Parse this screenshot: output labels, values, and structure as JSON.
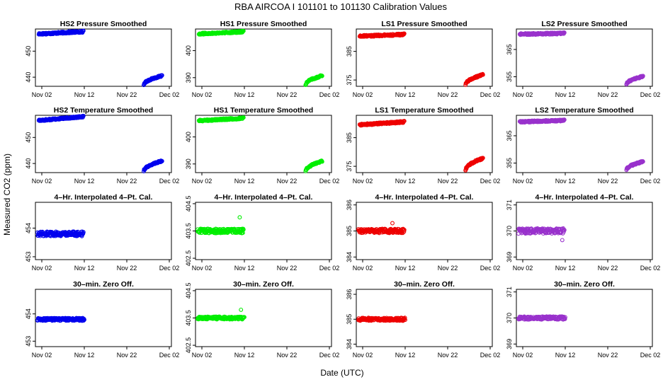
{
  "title": "RBA   AIRCOA I   101101 to 101130   Calibration Values",
  "xlabel": "Date (UTC)",
  "ylabel": "Measured CO2 (ppm)",
  "x_ticks": [
    "Nov 02",
    "Nov 12",
    "Nov 22",
    "Dec 02"
  ],
  "x_tick_days": [
    2,
    12,
    22,
    32
  ],
  "x_range_days": [
    0.5,
    32.5
  ],
  "column_colors": [
    "#0000ee",
    "#00ee00",
    "#ee0000",
    "#9932cc"
  ],
  "chart_data": [
    {
      "type": "scatter",
      "title": "HS2 Pressure Smoothed",
      "row": 0,
      "col": 0,
      "ylim": [
        436.5,
        458.5
      ],
      "y_ticks": [
        440,
        450
      ],
      "segments": [
        {
          "x_start": 1.3,
          "x_end": 11.8,
          "y_start": 456.6,
          "y_end": 457.5,
          "noise": 0.35
        },
        {
          "x_start": 26.0,
          "x_end": 30.3,
          "y_start": 437.0,
          "y_end": 440.5,
          "noise": 0.3,
          "shape": "sqrt"
        }
      ]
    },
    {
      "type": "scatter",
      "title": "HS1 Pressure Smoothed",
      "row": 0,
      "col": 1,
      "ylim": [
        386.8,
        408
      ],
      "y_ticks": [
        390,
        400
      ],
      "segments": [
        {
          "x_start": 1.3,
          "x_end": 11.8,
          "y_start": 406.2,
          "y_end": 407.0,
          "noise": 0.3
        },
        {
          "x_start": 26.4,
          "x_end": 30.3,
          "y_start": 387.3,
          "y_end": 390.7,
          "noise": 0.3,
          "shape": "sqrt"
        }
      ]
    },
    {
      "type": "scatter",
      "title": "LS1 Pressure Smoothed",
      "row": 0,
      "col": 2,
      "ylim": [
        372.8,
        392.8
      ],
      "y_ticks": [
        375,
        385
      ],
      "segments": [
        {
          "x_start": 1.3,
          "x_end": 11.8,
          "y_start": 390.3,
          "y_end": 390.9,
          "noise": 0.3
        },
        {
          "x_start": 26.2,
          "x_end": 30.3,
          "y_start": 373.3,
          "y_end": 376.8,
          "noise": 0.3,
          "shape": "sqrt"
        }
      ]
    },
    {
      "type": "scatter",
      "title": "LS2 Pressure Smoothed",
      "row": 0,
      "col": 3,
      "ylim": [
        351.5,
        372.5
      ],
      "y_ticks": [
        355,
        365
      ],
      "segments": [
        {
          "x_start": 1.3,
          "x_end": 11.8,
          "y_start": 370.6,
          "y_end": 370.9,
          "noise": 0.3
        },
        {
          "x_start": 26.4,
          "x_end": 30.3,
          "y_start": 352.2,
          "y_end": 355.1,
          "noise": 0.3,
          "shape": "sqrt"
        }
      ]
    },
    {
      "type": "scatter",
      "title": "HS2 Temperature Smoothed",
      "row": 1,
      "col": 0,
      "ylim": [
        436.5,
        458.5
      ],
      "y_ticks": [
        440,
        450
      ],
      "segments": [
        {
          "x_start": 1.3,
          "x_end": 11.8,
          "y_start": 456.5,
          "y_end": 458.0,
          "noise": 0.3
        },
        {
          "x_start": 26.0,
          "x_end": 30.3,
          "y_start": 437.0,
          "y_end": 441.0,
          "noise": 0.3,
          "shape": "sqrt"
        }
      ]
    },
    {
      "type": "scatter",
      "title": "HS1 Temperature Smoothed",
      "row": 1,
      "col": 1,
      "ylim": [
        386.8,
        408
      ],
      "y_ticks": [
        390,
        400
      ],
      "segments": [
        {
          "x_start": 1.3,
          "x_end": 11.8,
          "y_start": 406.0,
          "y_end": 406.9,
          "noise": 0.3
        },
        {
          "x_start": 26.4,
          "x_end": 30.3,
          "y_start": 387.3,
          "y_end": 391.0,
          "noise": 0.3,
          "shape": "sqrt"
        }
      ]
    },
    {
      "type": "scatter",
      "title": "LS1 Temperature Smoothed",
      "row": 1,
      "col": 2,
      "ylim": [
        372.8,
        392.8
      ],
      "y_ticks": [
        375,
        385
      ],
      "segments": [
        {
          "x_start": 1.3,
          "x_end": 11.8,
          "y_start": 389.5,
          "y_end": 390.5,
          "noise": 0.3
        },
        {
          "x_start": 26.2,
          "x_end": 30.3,
          "y_start": 373.5,
          "y_end": 377.8,
          "noise": 0.3,
          "shape": "sqrt"
        }
      ]
    },
    {
      "type": "scatter",
      "title": "LS2 Temperature Smoothed",
      "row": 1,
      "col": 3,
      "ylim": [
        351.5,
        372.5
      ],
      "y_ticks": [
        355,
        365
      ],
      "segments": [
        {
          "x_start": 1.3,
          "x_end": 11.8,
          "y_start": 370.1,
          "y_end": 370.6,
          "noise": 0.3
        },
        {
          "x_start": 26.4,
          "x_end": 30.3,
          "y_start": 352.4,
          "y_end": 355.5,
          "noise": 0.3,
          "shape": "sqrt"
        }
      ]
    },
    {
      "type": "scatter",
      "title": "4–Hr. Interpolated 4–Pt. Cal.",
      "row": 2,
      "col": 0,
      "ylim": [
        452.9,
        454.9
      ],
      "y_ticks": [
        453.0,
        454.0
      ],
      "segments": [
        {
          "x_start": 1.0,
          "x_end": 11.8,
          "y_start": 453.8,
          "y_end": 453.8,
          "noise": 0.08
        }
      ]
    },
    {
      "type": "scatter",
      "title": "4–Hr. Interpolated 4–Pt. Cal.",
      "row": 2,
      "col": 1,
      "ylim": [
        402.45,
        404.55
      ],
      "y_ticks": [
        402.5,
        403.5,
        404.5
      ],
      "segments": [
        {
          "x_start": 1.0,
          "x_end": 11.8,
          "y_start": 403.5,
          "y_end": 403.5,
          "noise": 0.08
        }
      ],
      "outliers": [
        {
          "x": 10.9,
          "y": 404.0
        }
      ]
    },
    {
      "type": "scatter",
      "title": "4–Hr. Interpolated 4–Pt. Cal.",
      "row": 2,
      "col": 2,
      "ylim": [
        383.9,
        386.1
      ],
      "y_ticks": [
        384.0,
        385.0,
        386.0
      ],
      "segments": [
        {
          "x_start": 1.0,
          "x_end": 11.8,
          "y_start": 385.0,
          "y_end": 385.0,
          "noise": 0.08
        }
      ],
      "outliers": [
        {
          "x": 9.0,
          "y": 385.3
        }
      ]
    },
    {
      "type": "scatter",
      "title": "4–Hr. Interpolated 4–Pt. Cal.",
      "row": 2,
      "col": 3,
      "ylim": [
        368.9,
        371.1
      ],
      "y_ticks": [
        369.0,
        370.0,
        371.0
      ],
      "segments": [
        {
          "x_start": 1.0,
          "x_end": 11.8,
          "y_start": 370.0,
          "y_end": 370.0,
          "noise": 0.1
        }
      ],
      "outliers": [
        {
          "x": 11.3,
          "y": 369.65
        }
      ]
    },
    {
      "type": "scatter",
      "title": "30–min. Zero Off.",
      "row": 3,
      "col": 0,
      "ylim": [
        452.8,
        454.9
      ],
      "y_ticks": [
        453.0,
        454.0
      ],
      "segments": [
        {
          "x_start": 1.0,
          "x_end": 12.0,
          "y_start": 453.8,
          "y_end": 453.8,
          "noise": 0.05
        }
      ]
    },
    {
      "type": "scatter",
      "title": "30–min. Zero Off.",
      "row": 3,
      "col": 1,
      "ylim": [
        402.45,
        404.55
      ],
      "y_ticks": [
        402.5,
        403.5,
        404.5
      ],
      "segments": [
        {
          "x_start": 1.0,
          "x_end": 12.0,
          "y_start": 403.5,
          "y_end": 403.5,
          "noise": 0.05
        }
      ],
      "outliers": [
        {
          "x": 11.2,
          "y": 403.8
        }
      ]
    },
    {
      "type": "scatter",
      "title": "30–min. Zero Off.",
      "row": 3,
      "col": 2,
      "ylim": [
        383.9,
        386.2
      ],
      "y_ticks": [
        384.0,
        385.0,
        386.0
      ],
      "segments": [
        {
          "x_start": 1.0,
          "x_end": 12.0,
          "y_start": 385.0,
          "y_end": 385.0,
          "noise": 0.06
        }
      ]
    },
    {
      "type": "scatter",
      "title": "30–min. Zero Off.",
      "row": 3,
      "col": 3,
      "ylim": [
        368.9,
        371.1
      ],
      "y_ticks": [
        369.0,
        370.0,
        371.0
      ],
      "segments": [
        {
          "x_start": 1.0,
          "x_end": 12.0,
          "y_start": 370.0,
          "y_end": 370.0,
          "noise": 0.06
        }
      ]
    }
  ]
}
